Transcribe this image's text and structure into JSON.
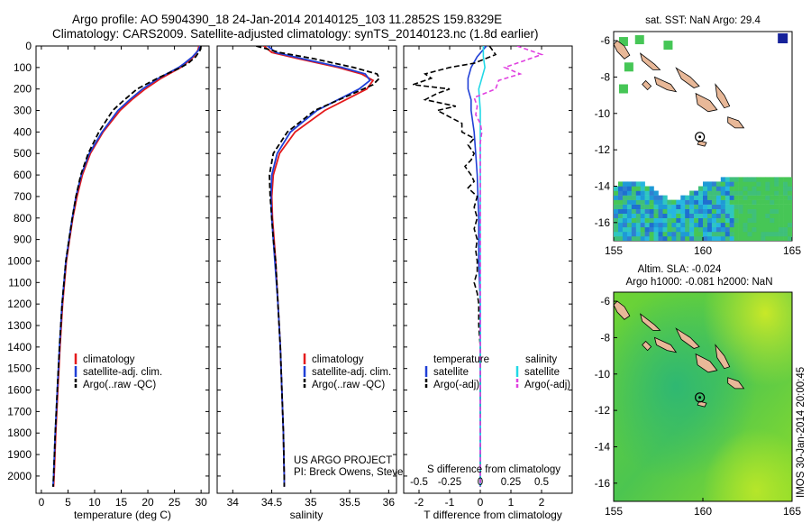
{
  "header": {
    "line1": "Argo profile: AO 5904390_18 24-Jan-2014 20140125_103 11.2852S 159.8329E",
    "line2": "Climatology: CARS2009. Satellite-adjusted climatology: synTS_20140123.nc (1.8d earlier)"
  },
  "footer": {
    "project": "US ARGO PROJECT",
    "pi": "PI: Breck Owens, Steve Jayne, and P.E. Robbi"
  },
  "side_label": "IMOS 30-Jan-2014 20:00:45",
  "colors": {
    "climatology": "#e41a1c",
    "satellite": "#1f3fd6",
    "argo": "#000000",
    "t_satellite": "#1f3fd6",
    "s_satellite": "#22d8e6",
    "s_argo": "#e040e0",
    "land": "#e8b898",
    "sst_green": "#3fc24a",
    "sla_green": "#5ccd2a"
  },
  "chart_data": [
    {
      "type": "line",
      "name": "temperature-profile",
      "xlabel": "temperature (deg C)",
      "ylabel": "",
      "xlim": [
        -1,
        31.5
      ],
      "ylim": [
        2080,
        0
      ],
      "xticks": [
        0,
        5,
        10,
        15,
        20,
        25,
        30
      ],
      "yticks": [
        0,
        100,
        200,
        300,
        400,
        500,
        600,
        700,
        800,
        900,
        1000,
        1100,
        1200,
        1300,
        1400,
        1500,
        1600,
        1700,
        1800,
        1900,
        2000
      ],
      "legend": [
        "climatology",
        "satellite-adj. clim.",
        "Argo(..raw -QC)"
      ],
      "series": [
        {
          "name": "climatology",
          "y": [
            0,
            20,
            50,
            80,
            100,
            150,
            200,
            250,
            300,
            400,
            500,
            600,
            700,
            800,
            900,
            1000,
            1200,
            1400,
            1600,
            1800,
            2000,
            2050
          ],
          "x": [
            29.6,
            29.4,
            28.6,
            27.2,
            26.2,
            22.5,
            19.5,
            17.0,
            14.8,
            11.6,
            9.2,
            7.7,
            6.7,
            5.9,
            5.3,
            4.7,
            4.0,
            3.5,
            3.1,
            2.7,
            2.4,
            2.3
          ]
        },
        {
          "name": "satellite",
          "y": [
            0,
            20,
            50,
            80,
            100,
            150,
            200,
            250,
            300,
            400,
            500,
            600,
            700,
            800,
            900,
            1000,
            1200,
            1400,
            1600,
            1800,
            2000,
            2050
          ],
          "x": [
            29.8,
            29.5,
            28.4,
            26.9,
            25.8,
            22.0,
            19.0,
            16.6,
            14.4,
            11.4,
            9.0,
            7.5,
            6.5,
            5.8,
            5.2,
            4.6,
            3.9,
            3.4,
            3.0,
            2.6,
            2.3,
            2.2
          ]
        },
        {
          "name": "argo",
          "y": [
            0,
            20,
            50,
            80,
            100,
            150,
            200,
            250,
            300,
            400,
            500,
            600,
            700,
            800,
            900,
            1000,
            1200,
            1400,
            1600,
            1800,
            2000,
            2050
          ],
          "x": [
            30.0,
            29.8,
            29.0,
            27.6,
            26.2,
            21.8,
            18.0,
            15.6,
            13.4,
            10.8,
            8.8,
            7.4,
            6.5,
            5.8,
            5.2,
            4.6,
            3.9,
            3.4,
            3.0,
            2.6,
            2.3,
            2.2
          ]
        }
      ]
    },
    {
      "type": "line",
      "name": "salinity-profile",
      "xlabel": "salinity",
      "xlim": [
        33.8,
        36.1
      ],
      "ylim": [
        2080,
        0
      ],
      "xticks": [
        34,
        34.5,
        35,
        35.5,
        36
      ],
      "legend": [
        "climatology",
        "satellite-adj. clim.",
        "Argo(..raw -QC)"
      ],
      "series": [
        {
          "name": "climatology",
          "y": [
            0,
            30,
            60,
            100,
            130,
            160,
            200,
            250,
            300,
            400,
            500,
            600,
            700,
            800,
            900,
            1000,
            1200,
            1400,
            1600,
            1800,
            2000,
            2050
          ],
          "x": [
            34.4,
            34.5,
            34.85,
            35.35,
            35.65,
            35.8,
            35.72,
            35.45,
            35.18,
            34.8,
            34.6,
            34.52,
            34.5,
            34.51,
            34.53,
            34.55,
            34.58,
            34.61,
            34.63,
            34.65,
            34.66,
            34.66
          ]
        },
        {
          "name": "satellite",
          "y": [
            0,
            30,
            60,
            100,
            130,
            160,
            200,
            250,
            300,
            400,
            500,
            600,
            700,
            800,
            900,
            1000,
            1200,
            1400,
            1600,
            1800,
            2000,
            2050
          ],
          "x": [
            34.45,
            34.55,
            34.9,
            35.4,
            35.7,
            35.76,
            35.62,
            35.35,
            35.08,
            34.74,
            34.57,
            34.5,
            34.49,
            34.5,
            34.52,
            34.54,
            34.58,
            34.61,
            34.63,
            34.65,
            34.66,
            34.66
          ]
        },
        {
          "name": "argo",
          "y": [
            0,
            30,
            60,
            100,
            130,
            150,
            180,
            220,
            260,
            300,
            400,
            500,
            600,
            700,
            800,
            900,
            1000,
            1200,
            1400,
            1600,
            1800,
            2000,
            2050
          ],
          "x": [
            34.3,
            34.6,
            35.05,
            35.55,
            35.85,
            35.88,
            35.8,
            35.55,
            35.3,
            35.05,
            34.7,
            34.52,
            34.47,
            34.48,
            34.5,
            34.52,
            34.55,
            34.58,
            34.61,
            34.63,
            34.65,
            34.66,
            34.66
          ]
        }
      ]
    },
    {
      "type": "line",
      "name": "difference-profile",
      "xlabel": "T difference from climatology",
      "xlabel_top": "S difference from climatology",
      "xlim": [
        -2.5,
        3
      ],
      "ylim": [
        2080,
        0
      ],
      "xticks": [
        -2,
        -1,
        0,
        1,
        2
      ],
      "xticks_top": [
        "-0.5",
        "-0.25",
        "0",
        "0.25",
        "0.5"
      ],
      "legend": {
        "temperature": [
          "satellite",
          "Argo(-adj)"
        ],
        "salinity": [
          "satellite",
          "Argo(-adj)"
        ]
      },
      "legend_headers": [
        "temperature",
        "salinity"
      ],
      "series": [
        {
          "name": "T satellite",
          "y": [
            0,
            50,
            100,
            150,
            200,
            250,
            300,
            400,
            500,
            600,
            800,
            1000,
            1200,
            1400,
            1600,
            1800,
            2000,
            2050
          ],
          "x": [
            0.2,
            -0.1,
            -0.3,
            -0.4,
            -0.4,
            -0.3,
            -0.3,
            -0.2,
            -0.15,
            -0.1,
            -0.05,
            -0.05,
            0,
            0,
            0,
            0,
            0,
            0
          ]
        },
        {
          "name": "T argo",
          "y": [
            0,
            40,
            80,
            100,
            130,
            150,
            180,
            200,
            220,
            250,
            280,
            300,
            330,
            360,
            400,
            430,
            460,
            500,
            530,
            560,
            600,
            630,
            660,
            700,
            750,
            800,
            850,
            900,
            950,
            1000,
            1050,
            1100,
            1150,
            1200,
            1300,
            1400,
            1600,
            1800,
            2000,
            2050
          ],
          "x": [
            0.3,
            0.5,
            -0.2,
            -1.0,
            -1.8,
            -1.6,
            -2.2,
            -1.0,
            -1.4,
            -1.8,
            -0.8,
            -1.4,
            -1.0,
            -0.6,
            -0.6,
            -0.2,
            -0.4,
            -0.2,
            -0.3,
            -0.5,
            -0.3,
            -0.2,
            -0.4,
            -0.1,
            -0.2,
            -0.1,
            -0.2,
            -0.1,
            -0.15,
            -0.1,
            -0.1,
            -0.2,
            -0.1,
            -0.05,
            -0.05,
            0,
            0,
            0,
            0,
            0
          ]
        },
        {
          "name": "S satellite",
          "y": [
            0,
            50,
            100,
            150,
            200,
            300,
            400,
            600,
            800,
            1000,
            1200,
            1400,
            1600,
            1800,
            2000,
            2050
          ],
          "x": [
            0.1,
            0.1,
            0.15,
            0.05,
            -0.05,
            0,
            0,
            0,
            0,
            0,
            0,
            0,
            0,
            0,
            0,
            0
          ]
        },
        {
          "name": "S argo",
          "y": [
            0,
            40,
            70,
            100,
            130,
            160,
            200,
            240,
            280,
            320,
            360,
            400,
            450,
            500,
            600,
            800,
            1000,
            1200,
            1400,
            1600,
            1800,
            2000,
            2050
          ],
          "x": [
            1.2,
            2.0,
            1.4,
            0.8,
            1.3,
            0.6,
            0.5,
            -0.2,
            -0.1,
            -0.15,
            0,
            0.05,
            0,
            0,
            0,
            0,
            0,
            0,
            0,
            0,
            0,
            0,
            0
          ]
        }
      ]
    },
    {
      "type": "heatmap",
      "name": "sst-map",
      "title": "sat. SST: NaN Argo: 29.4",
      "xlim": [
        155,
        165
      ],
      "ylim": [
        -17,
        -5.5
      ],
      "xticks": [
        155,
        160,
        165
      ],
      "yticks": [
        -6,
        -8,
        -10,
        -12,
        -14,
        -16
      ],
      "argo_position": {
        "lon": 159.83,
        "lat": -11.29
      }
    },
    {
      "type": "heatmap",
      "name": "sla-map",
      "title1": "Altim. SLA: -0.024",
      "title2": "Argo h1000: -0.081 h2000: NaN",
      "xlim": [
        155,
        165
      ],
      "ylim": [
        -17,
        -5.5
      ],
      "xticks": [
        155,
        160,
        165
      ],
      "yticks": [
        -6,
        -8,
        -10,
        -12,
        -14,
        -16
      ],
      "argo_position": {
        "lon": 159.83,
        "lat": -11.29
      }
    }
  ]
}
